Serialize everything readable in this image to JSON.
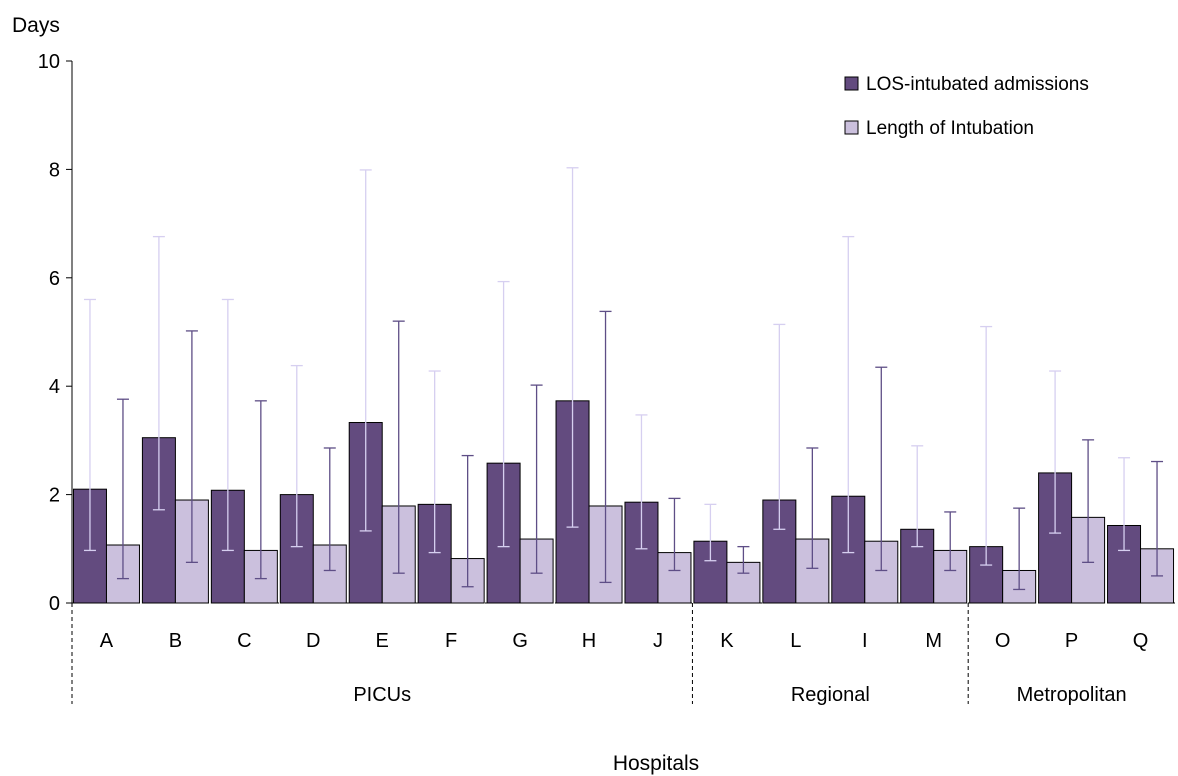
{
  "chart_data": {
    "type": "bar",
    "ylabel": "Days",
    "xlabel": "Hospitals",
    "ylim": [
      0,
      10
    ],
    "yticks": [
      0,
      2,
      4,
      6,
      8,
      10
    ],
    "categories": [
      "A",
      "B",
      "C",
      "D",
      "E",
      "F",
      "G",
      "H",
      "J",
      "K",
      "L",
      "I",
      "M",
      "O",
      "P",
      "Q"
    ],
    "groups": [
      {
        "label": "PICUs",
        "start": 0,
        "end": 8
      },
      {
        "label": "Regional",
        "start": 9,
        "end": 12
      },
      {
        "label": "Metropolitan",
        "start": 13,
        "end": 15
      }
    ],
    "legend_position": "top-right",
    "series": [
      {
        "name": "LOS-intubated admissions",
        "color": "#634b7f",
        "error_color": "#d6cff0",
        "values": [
          2.1,
          3.05,
          2.08,
          2.0,
          3.33,
          1.82,
          2.58,
          3.73,
          1.86,
          1.14,
          1.9,
          1.97,
          1.36,
          1.04,
          2.4,
          1.43
        ],
        "lower": [
          0.97,
          1.72,
          0.97,
          1.04,
          1.33,
          0.93,
          1.04,
          1.4,
          1.0,
          0.78,
          1.36,
          0.93,
          1.04,
          0.7,
          1.29,
          0.97
        ],
        "upper": [
          5.6,
          6.76,
          5.6,
          4.38,
          7.99,
          4.28,
          5.93,
          8.03,
          3.47,
          1.82,
          5.14,
          6.76,
          2.9,
          5.1,
          4.28,
          2.68
        ]
      },
      {
        "name": "Length of Intubation",
        "color": "#cbc0dd",
        "error_color": "#5e4e86",
        "values": [
          1.07,
          1.9,
          0.97,
          1.07,
          1.79,
          0.82,
          1.18,
          1.79,
          0.93,
          0.75,
          1.18,
          1.14,
          0.97,
          0.6,
          1.58,
          1.0
        ],
        "lower": [
          0.45,
          0.75,
          0.45,
          0.6,
          0.55,
          0.3,
          0.55,
          0.38,
          0.6,
          0.55,
          0.64,
          0.6,
          0.6,
          0.25,
          0.75,
          0.5
        ],
        "upper": [
          3.76,
          5.02,
          3.73,
          2.86,
          5.2,
          2.72,
          4.02,
          5.38,
          1.93,
          1.04,
          2.86,
          4.35,
          1.68,
          1.75,
          3.01,
          2.61
        ]
      }
    ]
  }
}
